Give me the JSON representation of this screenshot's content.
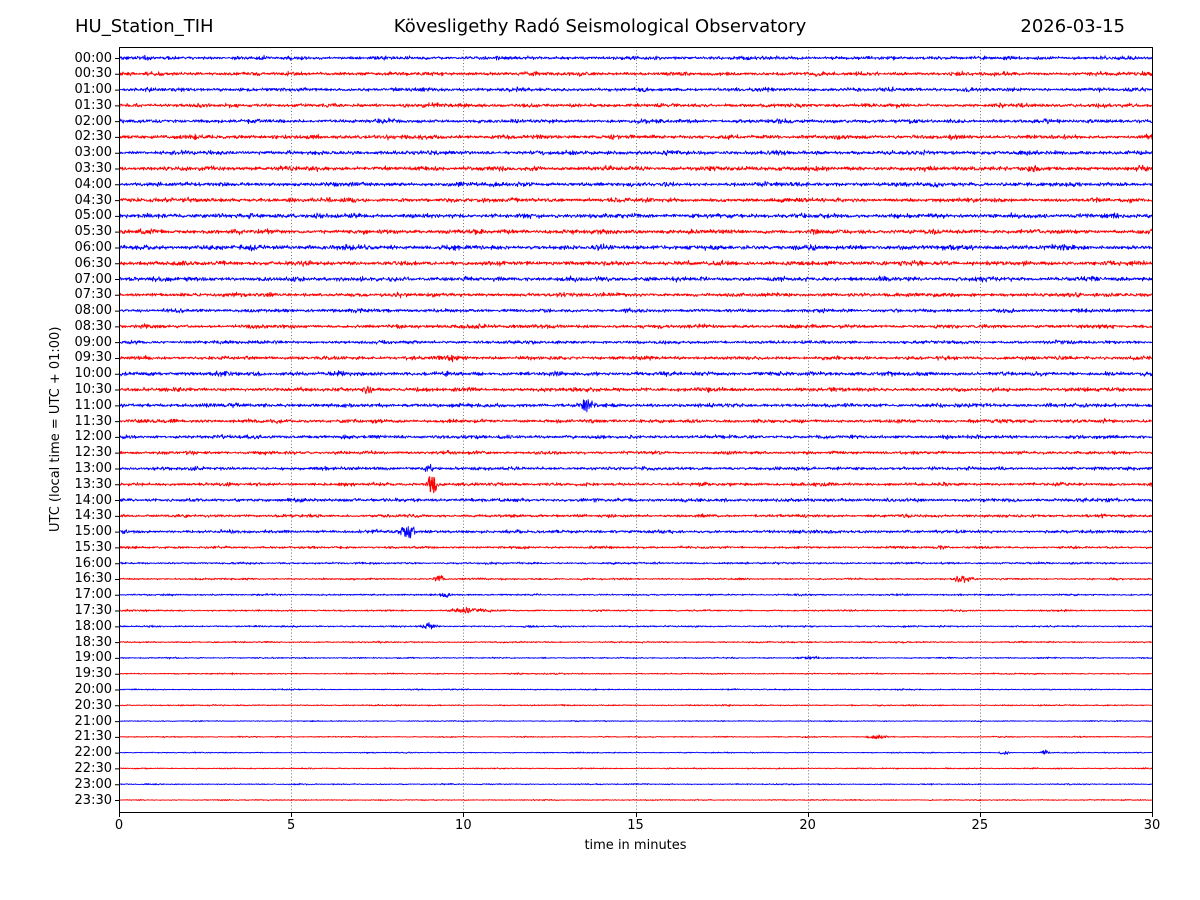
{
  "header": {
    "station": "HU_Station_TIH",
    "observatory": "Kövesligethy Radó Seismological Observatory",
    "date": "2026-03-15"
  },
  "axes": {
    "ylabel": "UTC (local time = UTC + 01:00)",
    "xlabel": "time in minutes",
    "xlim": [
      0,
      30
    ],
    "xticks": [
      0,
      5,
      10,
      15,
      20,
      25,
      30
    ],
    "grid_minutes": [
      5,
      10,
      15,
      20,
      25
    ],
    "grid_style": "dotted",
    "grid_color": "#666666"
  },
  "chart_data": {
    "type": "line",
    "subtype": "helicorder-dayplot",
    "title": "HU_Station_TIH — Kövesligethy Radó Seismological Observatory — 2026-03-15",
    "xlabel": "time in minutes",
    "ylabel": "UTC (local time = UTC + 01:00)",
    "xlim": [
      0,
      30
    ],
    "minutes_per_trace": 30,
    "trace_count": 48,
    "colors": {
      "hour_trace": "#0000ff",
      "half_hour_trace": "#ff0000"
    },
    "traces": [
      {
        "label": "00:00",
        "color": "#0000ff",
        "noise_amp": 2.4,
        "events": []
      },
      {
        "label": "00:30",
        "color": "#ff0000",
        "noise_amp": 2.5,
        "events": []
      },
      {
        "label": "01:00",
        "color": "#0000ff",
        "noise_amp": 2.4,
        "events": []
      },
      {
        "label": "01:30",
        "color": "#ff0000",
        "noise_amp": 2.6,
        "events": []
      },
      {
        "label": "02:00",
        "color": "#0000ff",
        "noise_amp": 2.6,
        "events": []
      },
      {
        "label": "02:30",
        "color": "#ff0000",
        "noise_amp": 2.8,
        "events": []
      },
      {
        "label": "03:00",
        "color": "#0000ff",
        "noise_amp": 2.8,
        "events": []
      },
      {
        "label": "03:30",
        "color": "#ff0000",
        "noise_amp": 3.0,
        "events": []
      },
      {
        "label": "04:00",
        "color": "#0000ff",
        "noise_amp": 2.8,
        "events": []
      },
      {
        "label": "04:30",
        "color": "#ff0000",
        "noise_amp": 2.8,
        "events": []
      },
      {
        "label": "05:00",
        "color": "#0000ff",
        "noise_amp": 3.0,
        "events": []
      },
      {
        "label": "05:30",
        "color": "#ff0000",
        "noise_amp": 3.0,
        "events": []
      },
      {
        "label": "06:00",
        "color": "#0000ff",
        "noise_amp": 3.2,
        "events": []
      },
      {
        "label": "06:30",
        "color": "#ff0000",
        "noise_amp": 3.0,
        "events": []
      },
      {
        "label": "07:00",
        "color": "#0000ff",
        "noise_amp": 3.0,
        "events": []
      },
      {
        "label": "07:30",
        "color": "#ff0000",
        "noise_amp": 2.6,
        "events": []
      },
      {
        "label": "08:00",
        "color": "#0000ff",
        "noise_amp": 2.4,
        "events": []
      },
      {
        "label": "08:30",
        "color": "#ff0000",
        "noise_amp": 2.4,
        "events": [
          {
            "minute": 10.4,
            "amp": 2.5,
            "width": 0.5
          }
        ]
      },
      {
        "label": "09:00",
        "color": "#0000ff",
        "noise_amp": 2.2,
        "events": []
      },
      {
        "label": "09:30",
        "color": "#ff0000",
        "noise_amp": 2.4,
        "events": [
          {
            "minute": 9.6,
            "amp": 2.5,
            "width": 0.4
          }
        ]
      },
      {
        "label": "10:00",
        "color": "#0000ff",
        "noise_amp": 2.8,
        "events": []
      },
      {
        "label": "10:30",
        "color": "#ff0000",
        "noise_amp": 2.6,
        "events": [
          {
            "minute": 7.2,
            "amp": 4.0,
            "width": 0.2
          }
        ]
      },
      {
        "label": "11:00",
        "color": "#0000ff",
        "noise_amp": 2.6,
        "events": [
          {
            "minute": 13.6,
            "amp": 8.0,
            "width": 0.2
          }
        ]
      },
      {
        "label": "11:30",
        "color": "#ff0000",
        "noise_amp": 2.4,
        "events": []
      },
      {
        "label": "12:00",
        "color": "#0000ff",
        "noise_amp": 2.4,
        "events": []
      },
      {
        "label": "12:30",
        "color": "#ff0000",
        "noise_amp": 2.2,
        "events": []
      },
      {
        "label": "13:00",
        "color": "#0000ff",
        "noise_amp": 2.2,
        "events": [
          {
            "minute": 9.0,
            "amp": 4.0,
            "width": 0.15
          }
        ]
      },
      {
        "label": "13:30",
        "color": "#ff0000",
        "noise_amp": 2.2,
        "events": [
          {
            "minute": 9.1,
            "amp": 9.0,
            "width": 0.18
          }
        ]
      },
      {
        "label": "14:00",
        "color": "#0000ff",
        "noise_amp": 2.4,
        "events": []
      },
      {
        "label": "14:30",
        "color": "#ff0000",
        "noise_amp": 2.0,
        "events": []
      },
      {
        "label": "15:00",
        "color": "#0000ff",
        "noise_amp": 2.2,
        "events": [
          {
            "minute": 8.4,
            "amp": 8.0,
            "width": 0.2
          }
        ]
      },
      {
        "label": "15:30",
        "color": "#ff0000",
        "noise_amp": 1.6,
        "events": [
          {
            "minute": 23.9,
            "amp": 2.0,
            "width": 0.2
          }
        ]
      },
      {
        "label": "16:00",
        "color": "#0000ff",
        "noise_amp": 1.4,
        "events": []
      },
      {
        "label": "16:30",
        "color": "#ff0000",
        "noise_amp": 1.2,
        "events": [
          {
            "minute": 9.3,
            "amp": 3.0,
            "width": 0.15
          },
          {
            "minute": 24.5,
            "amp": 4.0,
            "width": 0.25
          }
        ]
      },
      {
        "label": "17:00",
        "color": "#0000ff",
        "noise_amp": 1.2,
        "events": [
          {
            "minute": 9.5,
            "amp": 2.5,
            "width": 0.15
          }
        ]
      },
      {
        "label": "17:30",
        "color": "#ff0000",
        "noise_amp": 1.1,
        "events": [
          {
            "minute": 10.1,
            "amp": 3.0,
            "width": 0.5
          }
        ]
      },
      {
        "label": "18:00",
        "color": "#0000ff",
        "noise_amp": 1.1,
        "events": [
          {
            "minute": 9.0,
            "amp": 4.0,
            "width": 0.2
          }
        ]
      },
      {
        "label": "18:30",
        "color": "#ff0000",
        "noise_amp": 1.0,
        "events": []
      },
      {
        "label": "19:00",
        "color": "#0000ff",
        "noise_amp": 0.9,
        "events": [
          {
            "minute": 20.0,
            "amp": 1.5,
            "width": 0.4
          }
        ]
      },
      {
        "label": "19:30",
        "color": "#ff0000",
        "noise_amp": 0.9,
        "events": []
      },
      {
        "label": "20:00",
        "color": "#0000ff",
        "noise_amp": 0.8,
        "events": []
      },
      {
        "label": "20:30",
        "color": "#ff0000",
        "noise_amp": 0.9,
        "events": []
      },
      {
        "label": "21:00",
        "color": "#0000ff",
        "noise_amp": 0.7,
        "events": []
      },
      {
        "label": "21:30",
        "color": "#ff0000",
        "noise_amp": 0.8,
        "events": [
          {
            "minute": 22.0,
            "amp": 2.0,
            "width": 0.3
          }
        ]
      },
      {
        "label": "22:00",
        "color": "#0000ff",
        "noise_amp": 0.7,
        "events": [
          {
            "minute": 25.7,
            "amp": 3.0,
            "width": 0.12
          },
          {
            "minute": 26.9,
            "amp": 2.5,
            "width": 0.12
          }
        ]
      },
      {
        "label": "22:30",
        "color": "#ff0000",
        "noise_amp": 0.8,
        "events": []
      },
      {
        "label": "23:00",
        "color": "#0000ff",
        "noise_amp": 0.8,
        "events": []
      },
      {
        "label": "23:30",
        "color": "#ff0000",
        "noise_amp": 0.8,
        "events": []
      }
    ]
  }
}
